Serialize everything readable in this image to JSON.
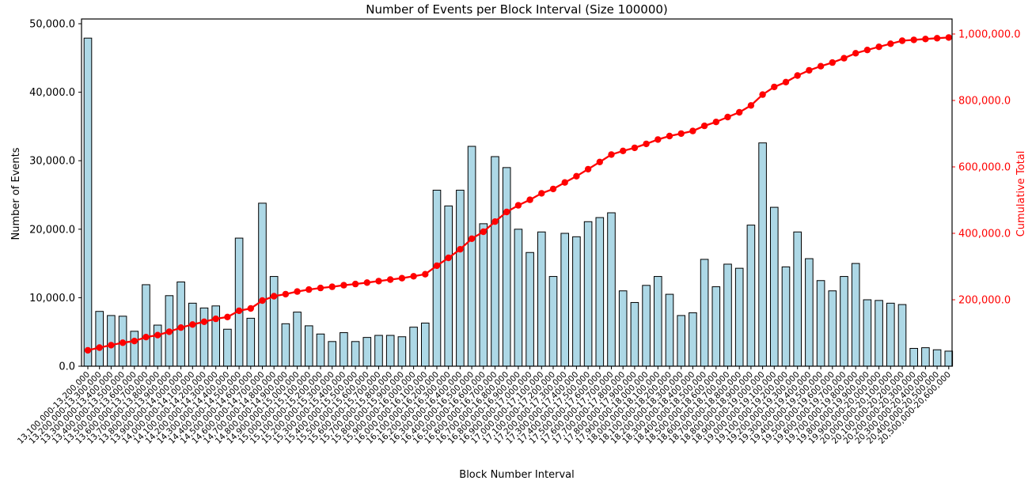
{
  "title": "Number of Events per Block Interval (Size 100000)",
  "xlabel": "Block Number Interval",
  "ylabel_left": "Number of Events",
  "ylabel_right": "Cumulative Total",
  "colors": {
    "bar_fill": "#add8e6",
    "bar_edge": "#000000",
    "line": "#ff0000",
    "axis": "#000000",
    "left_tick_text": "#000000",
    "right_tick_text": "#ff0000",
    "background": "#ffffff"
  },
  "axes": {
    "left": {
      "label": "Number of Events",
      "range": [
        0,
        50000
      ],
      "ticks": [
        {
          "value": 0,
          "label": "0.0"
        },
        {
          "value": 10000,
          "label": "10,000.0"
        },
        {
          "value": 20000,
          "label": "20,000.0"
        },
        {
          "value": 30000,
          "label": "30,000.0"
        },
        {
          "value": 40000,
          "label": "40,000.0"
        },
        {
          "value": 50000,
          "label": "50,000.0"
        }
      ]
    },
    "right": {
      "label": "Cumulative Total",
      "range": [
        0,
        1045000
      ],
      "ticks": [
        {
          "value": 200000,
          "label": "200,000.0"
        },
        {
          "value": 400000,
          "label": "400,000.0"
        },
        {
          "value": 600000,
          "label": "600,000.0"
        },
        {
          "value": 800000,
          "label": "800,000.0"
        },
        {
          "value": 1000000,
          "label": "1,000,000.0"
        }
      ]
    }
  },
  "chart_data": {
    "type": "bar",
    "title": "Number of Events per Block Interval (Size 100000)",
    "xlabel": "Block Number Interval",
    "ylabel": "Number of Events",
    "ylabel2": "Cumulative Total",
    "ylim": [
      0,
      50000
    ],
    "ylim2": [
      0,
      1045000
    ],
    "grid": false,
    "legend": "none",
    "x_tick_rotation": 45,
    "categories": [
      "13,100,000-13,200,000",
      "13,200,000-13,300,000",
      "13,300,000-13,400,000",
      "13,400,000-13,500,000",
      "13,500,000-13,600,000",
      "13,600,000-13,700,000",
      "13,700,000-13,800,000",
      "13,800,000-13,900,000",
      "13,900,000-14,000,000",
      "14,000,000-14,100,000",
      "14,100,000-14,200,000",
      "14,200,000-14,300,000",
      "14,300,000-14,400,000",
      "14,400,000-14,500,000",
      "14,500,000-14,600,000",
      "14,600,000-14,700,000",
      "14,700,000-14,800,000",
      "14,800,000-14,900,000",
      "14,900,000-15,000,000",
      "15,000,000-15,100,000",
      "15,100,000-15,200,000",
      "15,200,000-15,300,000",
      "15,300,000-15,400,000",
      "15,400,000-15,500,000",
      "15,500,000-15,600,000",
      "15,600,000-15,700,000",
      "15,700,000-15,800,000",
      "15,800,000-15,900,000",
      "15,900,000-16,000,000",
      "16,000,000-16,100,000",
      "16,100,000-16,200,000",
      "16,200,000-16,300,000",
      "16,300,000-16,400,000",
      "16,400,000-16,500,000",
      "16,500,000-16,600,000",
      "16,600,000-16,700,000",
      "16,700,000-16,800,000",
      "16,800,000-16,900,000",
      "16,900,000-17,000,000",
      "17,000,000-17,100,000",
      "17,100,000-17,200,000",
      "17,200,000-17,300,000",
      "17,300,000-17,400,000",
      "17,400,000-17,500,000",
      "17,500,000-17,600,000",
      "17,600,000-17,700,000",
      "17,700,000-17,800,000",
      "17,800,000-17,900,000",
      "17,900,000-18,000,000",
      "18,000,000-18,100,000",
      "18,100,000-18,200,000",
      "18,200,000-18,300,000",
      "18,300,000-18,400,000",
      "18,400,000-18,500,000",
      "18,500,000-18,600,000",
      "18,600,000-18,700,000",
      "18,700,000-18,800,000",
      "18,800,000-18,900,000",
      "18,900,000-19,000,000",
      "19,000,000-19,100,000",
      "19,100,000-19,200,000",
      "19,200,000-19,300,000",
      "19,300,000-19,400,000",
      "19,400,000-19,500,000",
      "19,500,000-19,600,000",
      "19,600,000-19,700,000",
      "19,700,000-19,800,000",
      "19,800,000-19,900,000",
      "19,900,000-20,000,000",
      "20,000,000-20,100,000",
      "20,100,000-20,200,000",
      "20,200,000-20,300,000",
      "20,300,000-20,400,000",
      "20,400,000-20,500,000",
      "20,500,000-20,600,000"
    ],
    "series": [
      {
        "name": "Number of Events",
        "type": "bar",
        "values": [
          47900,
          8000,
          7400,
          7300,
          5100,
          11900,
          6000,
          10300,
          12300,
          9200,
          8500,
          8800,
          5400,
          18700,
          7000,
          23800,
          13100,
          6200,
          7900,
          5900,
          4700,
          3600,
          4900,
          3600,
          4200,
          4500,
          4500,
          4300,
          5700,
          6300,
          25700,
          23400,
          25700,
          32100,
          20800,
          30600,
          29000,
          20000,
          16600,
          19600,
          13100,
          19400,
          18900,
          21100,
          21700,
          22400,
          11000,
          9300,
          11800,
          13100,
          10500,
          7400,
          7800,
          15600,
          11600,
          14900,
          14300,
          20600,
          32600,
          23200,
          14500,
          19600,
          15700,
          12500,
          11000,
          13100,
          15000,
          9700,
          9600,
          9200,
          9000,
          2600,
          2700,
          2400,
          2200
        ]
      },
      {
        "name": "Cumulative Total",
        "type": "line",
        "derived": "cumulative_sum_of_bar_values",
        "marker": "circle"
      }
    ]
  }
}
